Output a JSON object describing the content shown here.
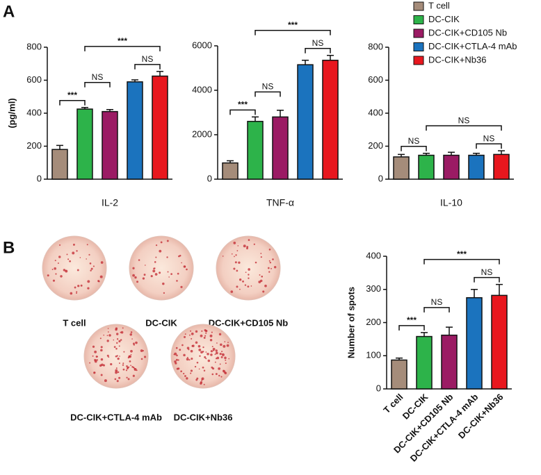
{
  "panel_labels": [
    "A",
    "B"
  ],
  "chart_data": [
    {
      "type": "bar",
      "xlabel": "IL-2",
      "ylabel": "(pg/ml)",
      "categories": [
        "T cell",
        "DC-CIK",
        "DC-CIK+CD105 Nb",
        "DC-CIK+CTLA-4 mAb",
        "DC-CIK+Nb36"
      ],
      "colors": [
        "#a58c7a",
        "#2db34a",
        "#9b1b64",
        "#1b73be",
        "#e8171e"
      ],
      "values": [
        180,
        425,
        410,
        590,
        625
      ],
      "errors": [
        25,
        10,
        12,
        12,
        28
      ],
      "ylim": [
        0,
        800
      ],
      "yticks": [
        0,
        200,
        400,
        600,
        800
      ],
      "brackets": [
        {
          "from": 0,
          "to": 1,
          "label": "***"
        },
        {
          "from": 1,
          "to": 2,
          "label": "NS"
        },
        {
          "from": 3,
          "to": 4,
          "label": "NS"
        },
        {
          "from": 1,
          "to": 4,
          "label": "***"
        }
      ]
    },
    {
      "type": "bar",
      "xlabel": "TNF-α",
      "categories": [
        "T cell",
        "DC-CIK",
        "DC-CIK+CD105 Nb",
        "DC-CIK+CTLA-4 mAb",
        "DC-CIK+Nb36"
      ],
      "colors": [
        "#a58c7a",
        "#2db34a",
        "#9b1b64",
        "#1b73be",
        "#e8171e"
      ],
      "values": [
        730,
        2600,
        2800,
        5150,
        5350
      ],
      "errors": [
        100,
        200,
        300,
        200,
        220
      ],
      "ylim": [
        0,
        6000
      ],
      "yticks": [
        0,
        2000,
        4000,
        6000
      ],
      "brackets": [
        {
          "from": 0,
          "to": 1,
          "label": "***"
        },
        {
          "from": 1,
          "to": 2,
          "label": "NS"
        },
        {
          "from": 3,
          "to": 4,
          "label": "NS"
        },
        {
          "from": 1,
          "to": 4,
          "label": "***"
        }
      ]
    },
    {
      "type": "bar",
      "xlabel": "IL-10",
      "categories": [
        "T cell",
        "DC-CIK",
        "DC-CIK+CD105 Nb",
        "DC-CIK+CTLA-4 mAb",
        "DC-CIK+Nb36"
      ],
      "colors": [
        "#a58c7a",
        "#2db34a",
        "#9b1b64",
        "#1b73be",
        "#e8171e"
      ],
      "values": [
        135,
        145,
        145,
        145,
        150
      ],
      "errors": [
        15,
        12,
        18,
        12,
        22
      ],
      "ylim": [
        0,
        800
      ],
      "yticks": [
        0,
        200,
        400,
        600,
        800
      ],
      "brackets": [
        {
          "from": 0,
          "to": 1,
          "label": "NS"
        },
        {
          "from": 3,
          "to": 4,
          "label": "NS"
        },
        {
          "from": 1,
          "to": 4,
          "label": "NS"
        }
      ]
    },
    {
      "type": "bar",
      "ylabel": "Number of spots",
      "categories": [
        "T cell",
        "DC-CIK",
        "DC-CIK+CD105 Nb",
        "DC-CIK+CTLA-4 mAb",
        "DC-CIK+Nb36"
      ],
      "colors": [
        "#a58c7a",
        "#2db34a",
        "#9b1b64",
        "#1b73be",
        "#e8171e"
      ],
      "values": [
        87,
        158,
        162,
        275,
        282
      ],
      "errors": [
        6,
        12,
        24,
        25,
        33
      ],
      "ylim": [
        0,
        400
      ],
      "yticks": [
        0,
        100,
        200,
        300,
        400
      ],
      "brackets": [
        {
          "from": 0,
          "to": 1,
          "label": "***"
        },
        {
          "from": 1,
          "to": 2,
          "label": "NS"
        },
        {
          "from": 3,
          "to": 4,
          "label": "NS"
        },
        {
          "from": 1,
          "to": 4,
          "label": "***"
        }
      ]
    }
  ],
  "wells": [
    "T cell",
    "DC-CIK",
    "DC-CIK+CD105 Nb",
    "DC-CIK+CTLA-4 mAb",
    "DC-CIK+Nb36"
  ]
}
